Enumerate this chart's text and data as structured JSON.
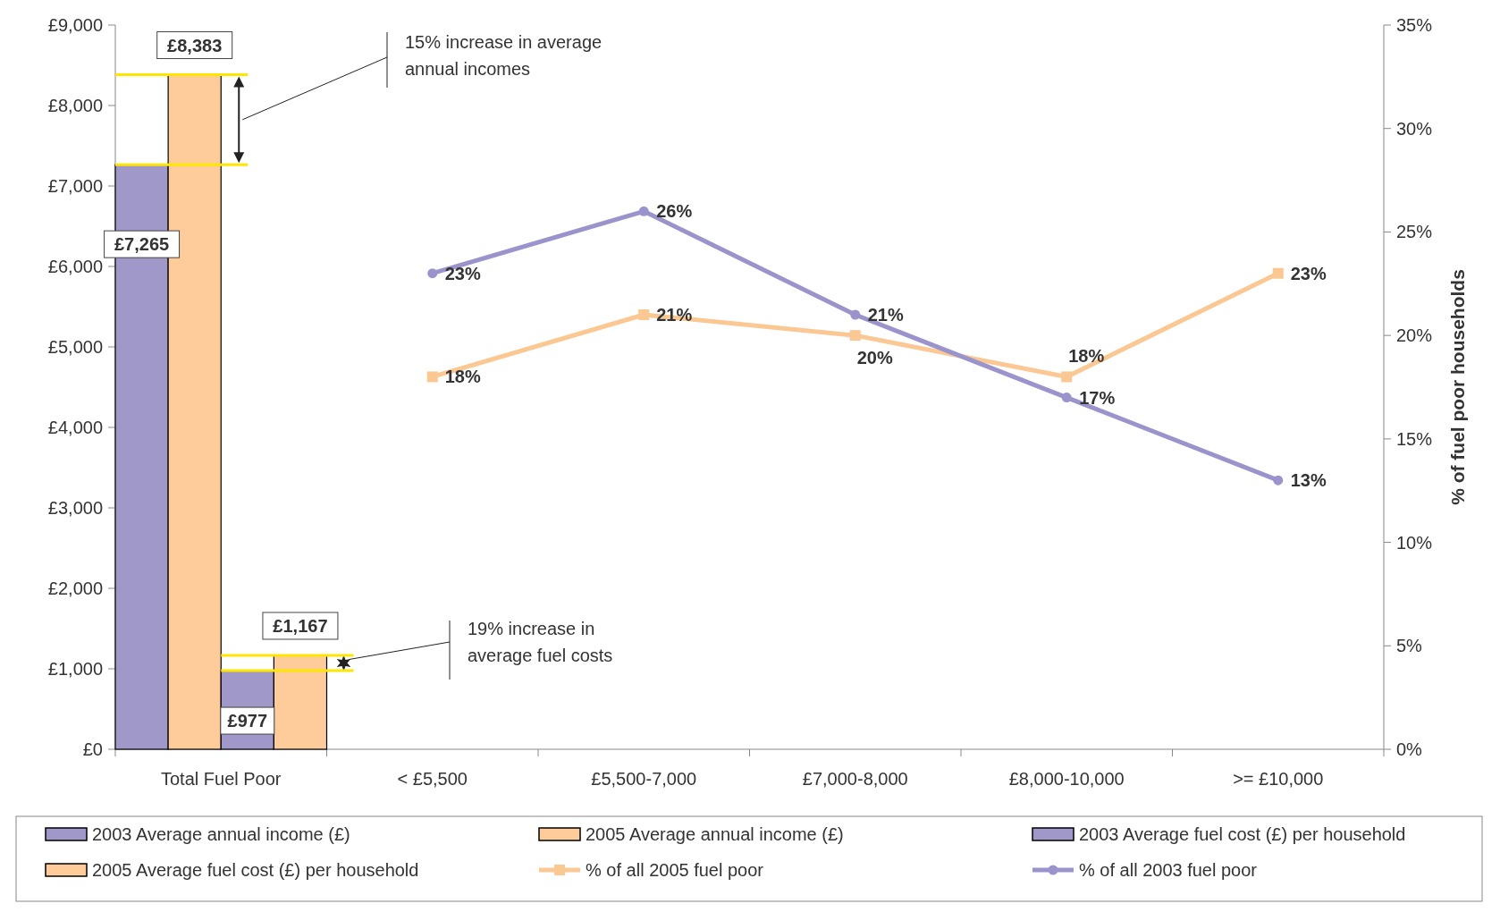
{
  "chart_data": {
    "type": "bar",
    "categories": [
      "Total Fuel Poor",
      "< £5,500",
      "£5,500-7,000",
      "£7,000-8,000",
      "£8,000-10,000",
      ">= £10,000"
    ],
    "series": [
      {
        "name": "2003 Average annual income (£)",
        "color": "#9f98c9",
        "values": [
          7265,
          null,
          null,
          null,
          null,
          null
        ],
        "value_labels": [
          "£7,265",
          null,
          null,
          null,
          null,
          null
        ]
      },
      {
        "name": "2005 Average annual income (£)",
        "color": "#fdcc9a",
        "values": [
          8383,
          null,
          null,
          null,
          null,
          null
        ],
        "value_labels": [
          "£8,383",
          null,
          null,
          null,
          null,
          null
        ]
      },
      {
        "name": "2003 Average fuel cost (£) per household",
        "color": "#9f98c9",
        "values": [
          977,
          null,
          null,
          null,
          null,
          null
        ],
        "value_labels": [
          "£977",
          null,
          null,
          null,
          null,
          null
        ]
      },
      {
        "name": "2005 Average fuel cost (£) per household",
        "color": "#fdcc9a",
        "values": [
          1167,
          null,
          null,
          null,
          null,
          null
        ],
        "value_labels": [
          "£1,167",
          null,
          null,
          null,
          null,
          null
        ]
      },
      {
        "name": "% of all 2005 fuel poor",
        "type": "line",
        "axis": "y2",
        "marker": "square",
        "color": "#fbc894",
        "values": [
          null,
          18,
          21,
          20,
          18,
          23
        ],
        "value_labels": [
          null,
          "18%",
          "21%",
          "20%",
          "18%",
          "23%"
        ]
      },
      {
        "name": "% of all 2003 fuel poor",
        "type": "line",
        "axis": "y2",
        "marker": "circle",
        "color": "#9b93cc",
        "values": [
          null,
          23,
          26,
          21,
          17,
          13
        ],
        "value_labels": [
          null,
          "23%",
          "26%",
          "21%",
          "17%",
          "13%"
        ]
      }
    ],
    "ylim": [
      0,
      9000
    ],
    "yticks": [
      {
        "value": 0,
        "label": "£0"
      },
      {
        "value": 1000,
        "label": "£1,000"
      },
      {
        "value": 2000,
        "label": "£2,000"
      },
      {
        "value": 3000,
        "label": "£3,000"
      },
      {
        "value": 4000,
        "label": "£4,000"
      },
      {
        "value": 5000,
        "label": "£5,000"
      },
      {
        "value": 6000,
        "label": "£6,000"
      },
      {
        "value": 7000,
        "label": "£7,000"
      },
      {
        "value": 8000,
        "label": "£8,000"
      },
      {
        "value": 9000,
        "label": "£9,000"
      }
    ],
    "y2lim": [
      0,
      35
    ],
    "y2ticks": [
      {
        "value": 0,
        "label": "0%"
      },
      {
        "value": 5,
        "label": "5%"
      },
      {
        "value": 10,
        "label": "10%"
      },
      {
        "value": 15,
        "label": "15%"
      },
      {
        "value": 20,
        "label": "20%"
      },
      {
        "value": 25,
        "label": "25%"
      },
      {
        "value": 30,
        "label": "30%"
      },
      {
        "value": 35,
        "label": "35%"
      }
    ],
    "y2label": "% of fuel poor households",
    "annotations": [
      "15% increase in average annual incomes",
      "19% increase in average fuel costs"
    ],
    "grid": false,
    "legend": "bottom"
  }
}
